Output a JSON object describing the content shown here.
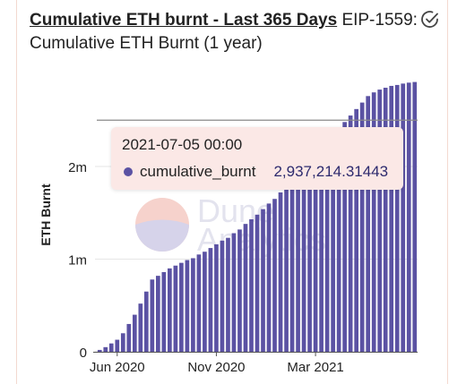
{
  "header": {
    "title_link": "Cumulative ETH burnt - Last 365 Days",
    "subtitle": "EIP-1559: Cumulative ETH Burnt (1 year)",
    "check_icon": "check-circle-icon"
  },
  "watermark": {
    "line1": "Dune",
    "line2": "Analytics"
  },
  "tooltip": {
    "date": "2021-07-05 00:00",
    "series": "cumulative_burnt",
    "value": "2,937,214.31443"
  },
  "colors": {
    "bar": "#5b52a3",
    "tooltip_bg": "#fbe8e6",
    "grid": "#e6e6e6"
  },
  "chart_data": {
    "type": "bar",
    "ylabel": "ETH Burnt",
    "xlabel": "",
    "y_ticks": [
      {
        "value": 0,
        "label": "0"
      },
      {
        "value": 1000000,
        "label": "1m"
      },
      {
        "value": 2000000,
        "label": "2m"
      }
    ],
    "x_ticks": [
      {
        "index": 3,
        "label": "Jun 2020"
      },
      {
        "index": 20,
        "label": "Nov 2020"
      },
      {
        "index": 37,
        "label": "Mar 2021"
      }
    ],
    "ylim": [
      0,
      2900000
    ],
    "reference_line": 2500000,
    "series": [
      {
        "name": "cumulative_burnt",
        "values": [
          20000,
          50000,
          90000,
          130000,
          200000,
          300000,
          400000,
          520000,
          650000,
          780000,
          820000,
          860000,
          900000,
          930000,
          960000,
          990000,
          1010000,
          1050000,
          1080000,
          1120000,
          1160000,
          1200000,
          1230000,
          1280000,
          1320000,
          1380000,
          1430000,
          1480000,
          1540000,
          1600000,
          1650000,
          1720000,
          1790000,
          1860000,
          1930000,
          2000000,
          2080000,
          2140000,
          2200000,
          2270000,
          2340000,
          2400000,
          2480000,
          2550000,
          2620000,
          2690000,
          2760000,
          2800000,
          2830000,
          2850000,
          2870000,
          2880000,
          2895000,
          2905000,
          2912000
        ]
      }
    ]
  }
}
